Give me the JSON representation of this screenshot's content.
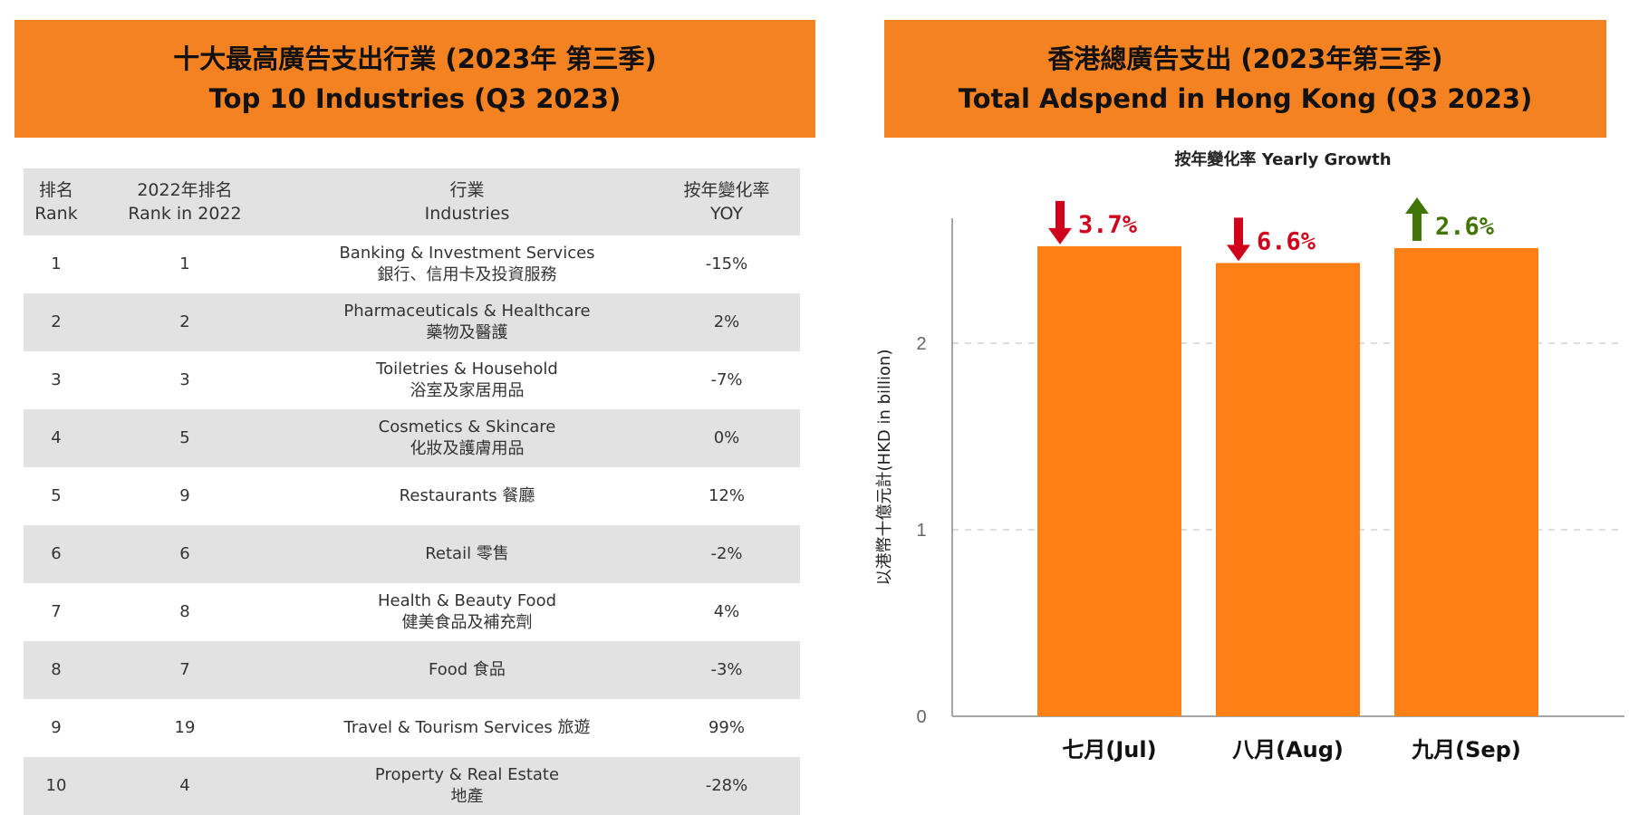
{
  "left_panel": {
    "title_zh": "十大最高廣告支出行業 (2023年 第三季)",
    "title_en": "Top 10 Industries (Q3 2023)",
    "headers": [
      {
        "zh": "排名",
        "en": "Rank"
      },
      {
        "zh": "2022年排名",
        "en": "Rank in 2022"
      },
      {
        "zh": "行業",
        "en": "Industries"
      },
      {
        "zh": "按年變化率",
        "en": "YOY"
      }
    ],
    "rows": [
      {
        "rank": "1",
        "rank2022": "1",
        "en": "Banking & Investment Services",
        "zh": "銀行、信用卡及投資服務",
        "yoy": "-15%"
      },
      {
        "rank": "2",
        "rank2022": "2",
        "en": "Pharmaceuticals & Healthcare",
        "zh": "藥物及醫護",
        "yoy": "2%"
      },
      {
        "rank": "3",
        "rank2022": "3",
        "en": "Toiletries & Household",
        "zh": "浴室及家居用品",
        "yoy": "-7%"
      },
      {
        "rank": "4",
        "rank2022": "5",
        "en": "Cosmetics & Skincare",
        "zh": "化妝及護膚用品",
        "yoy": "0%"
      },
      {
        "rank": "5",
        "rank2022": "9",
        "en": "Restaurants 餐廳",
        "zh": "",
        "yoy": "12%"
      },
      {
        "rank": "6",
        "rank2022": "6",
        "en": "Retail 零售",
        "zh": "",
        "yoy": "-2%"
      },
      {
        "rank": "7",
        "rank2022": "8",
        "en": "Health & Beauty Food",
        "zh": "健美食品及補充劑",
        "yoy": "4%"
      },
      {
        "rank": "8",
        "rank2022": "7",
        "en": "Food 食品",
        "zh": "",
        "yoy": "-3%"
      },
      {
        "rank": "9",
        "rank2022": "19",
        "en": "Travel & Tourism Services 旅遊",
        "zh": "",
        "yoy": "99%"
      },
      {
        "rank": "10",
        "rank2022": "4",
        "en": "Property & Real Estate",
        "zh": "地產",
        "yoy": "-28%"
      }
    ]
  },
  "colors": {
    "banner": "#f58220",
    "bar": "#fd7f15",
    "down": "#d0021b",
    "up": "#417505",
    "row_alt": "#e2e2e2"
  },
  "chart_data": {
    "type": "bar",
    "title_zh": "香港總廣告支出 (2023年第三季)",
    "title_en": "Total Adspend in Hong Kong (Q3 2023)",
    "subtitle": "按年變化率 Yearly Growth",
    "ylabel": "以港幣十億元計(HKD in billion)",
    "categories": [
      "七月(Jul)",
      "八月(Aug)",
      "九月(Sep)"
    ],
    "values": [
      2.52,
      2.43,
      2.51
    ],
    "growth": [
      {
        "label": "3.7%",
        "direction": "down"
      },
      {
        "label": "6.6%",
        "direction": "down"
      },
      {
        "label": "2.6%",
        "direction": "up"
      }
    ],
    "yticks": [
      "0",
      "1",
      "2"
    ],
    "ylim": [
      0,
      2.65
    ],
    "grid": true
  }
}
